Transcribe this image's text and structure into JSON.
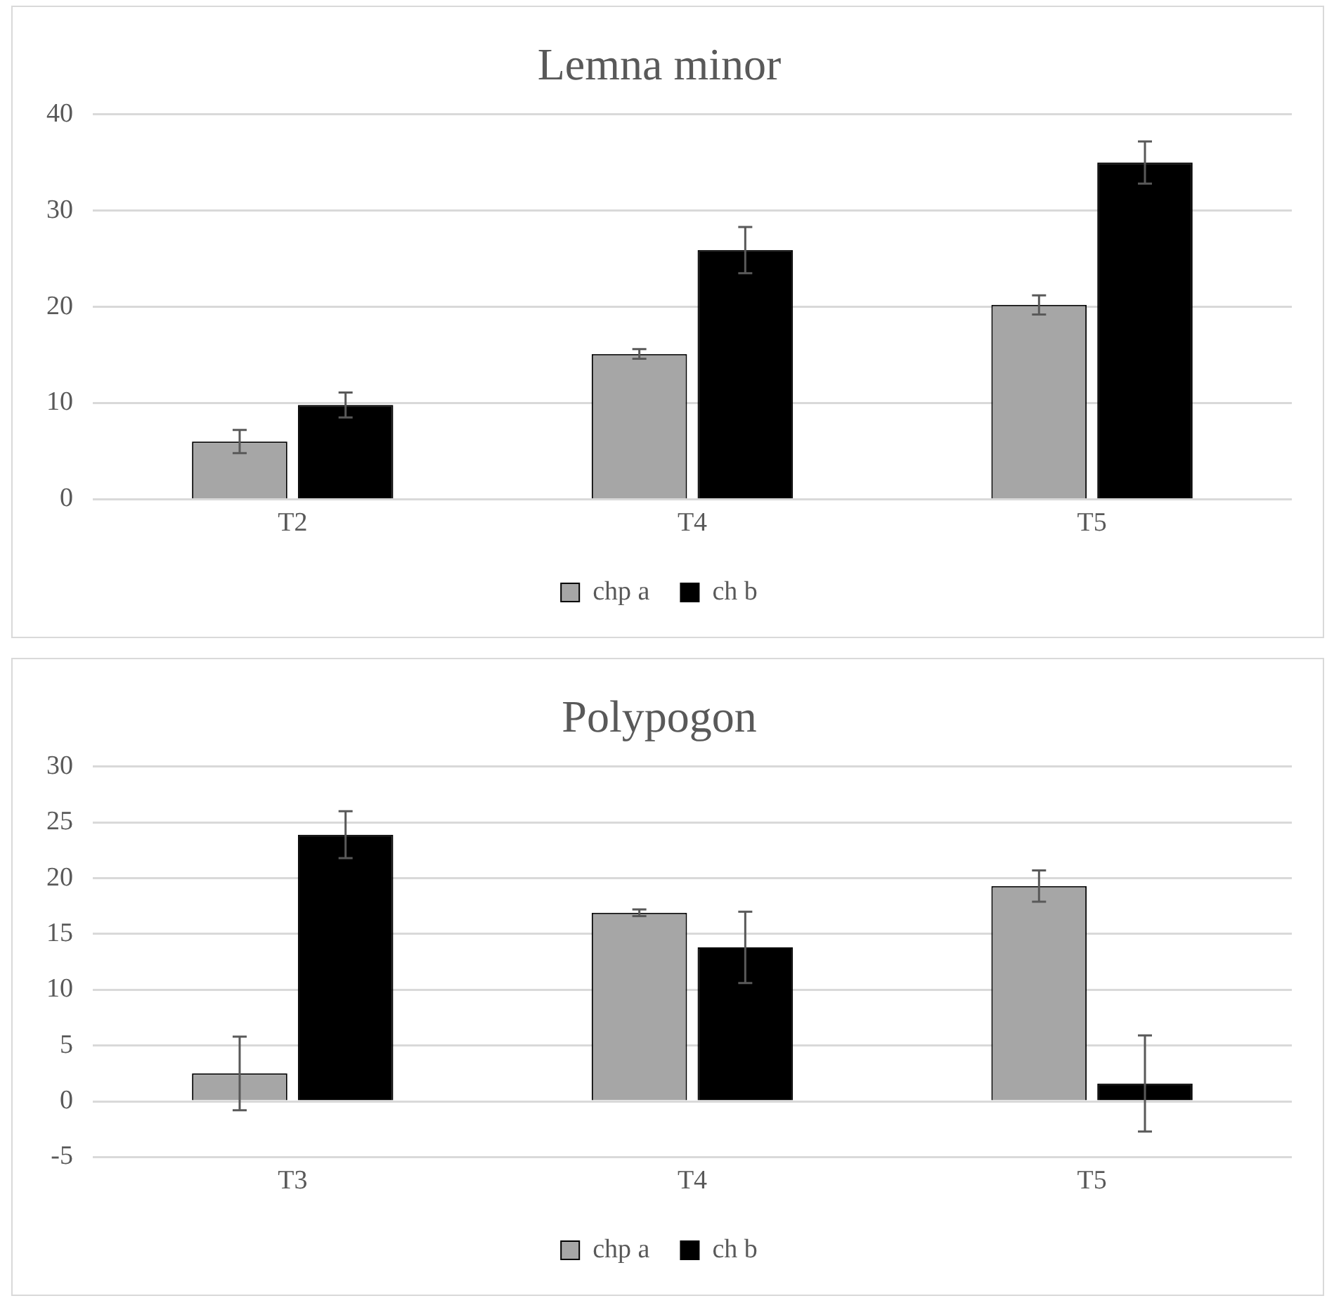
{
  "chart_data": [
    {
      "type": "bar",
      "title": "Lemna minor",
      "categories": [
        "T2",
        "T4",
        "T5"
      ],
      "series": [
        {
          "name": "chp a",
          "color": "#a6a6a6",
          "values": [
            6.0,
            15.1,
            20.2
          ],
          "errors": [
            1.2,
            0.5,
            1.0
          ]
        },
        {
          "name": "ch b",
          "color": "#000000",
          "values": [
            9.8,
            25.9,
            35.0
          ],
          "errors": [
            1.3,
            2.4,
            2.2
          ]
        }
      ],
      "ylim": [
        0,
        40
      ],
      "yticks": [
        0,
        10,
        20,
        30,
        40
      ],
      "grid": "y",
      "legend": "bottom"
    },
    {
      "type": "bar",
      "title": "Polypogon",
      "categories": [
        "T3",
        "T4",
        "T5"
      ],
      "series": [
        {
          "name": "chp a",
          "color": "#a6a6a6",
          "values": [
            2.5,
            16.9,
            19.3
          ],
          "errors": [
            3.3,
            0.3,
            1.4
          ]
        },
        {
          "name": "ch b",
          "color": "#000000",
          "values": [
            23.9,
            13.8,
            1.6
          ],
          "errors": [
            2.1,
            3.2,
            4.3
          ]
        }
      ],
      "ylim": [
        -5,
        30
      ],
      "yticks": [
        -5,
        0,
        5,
        10,
        15,
        20,
        25,
        30
      ],
      "grid": "y",
      "legend": "bottom"
    }
  ]
}
